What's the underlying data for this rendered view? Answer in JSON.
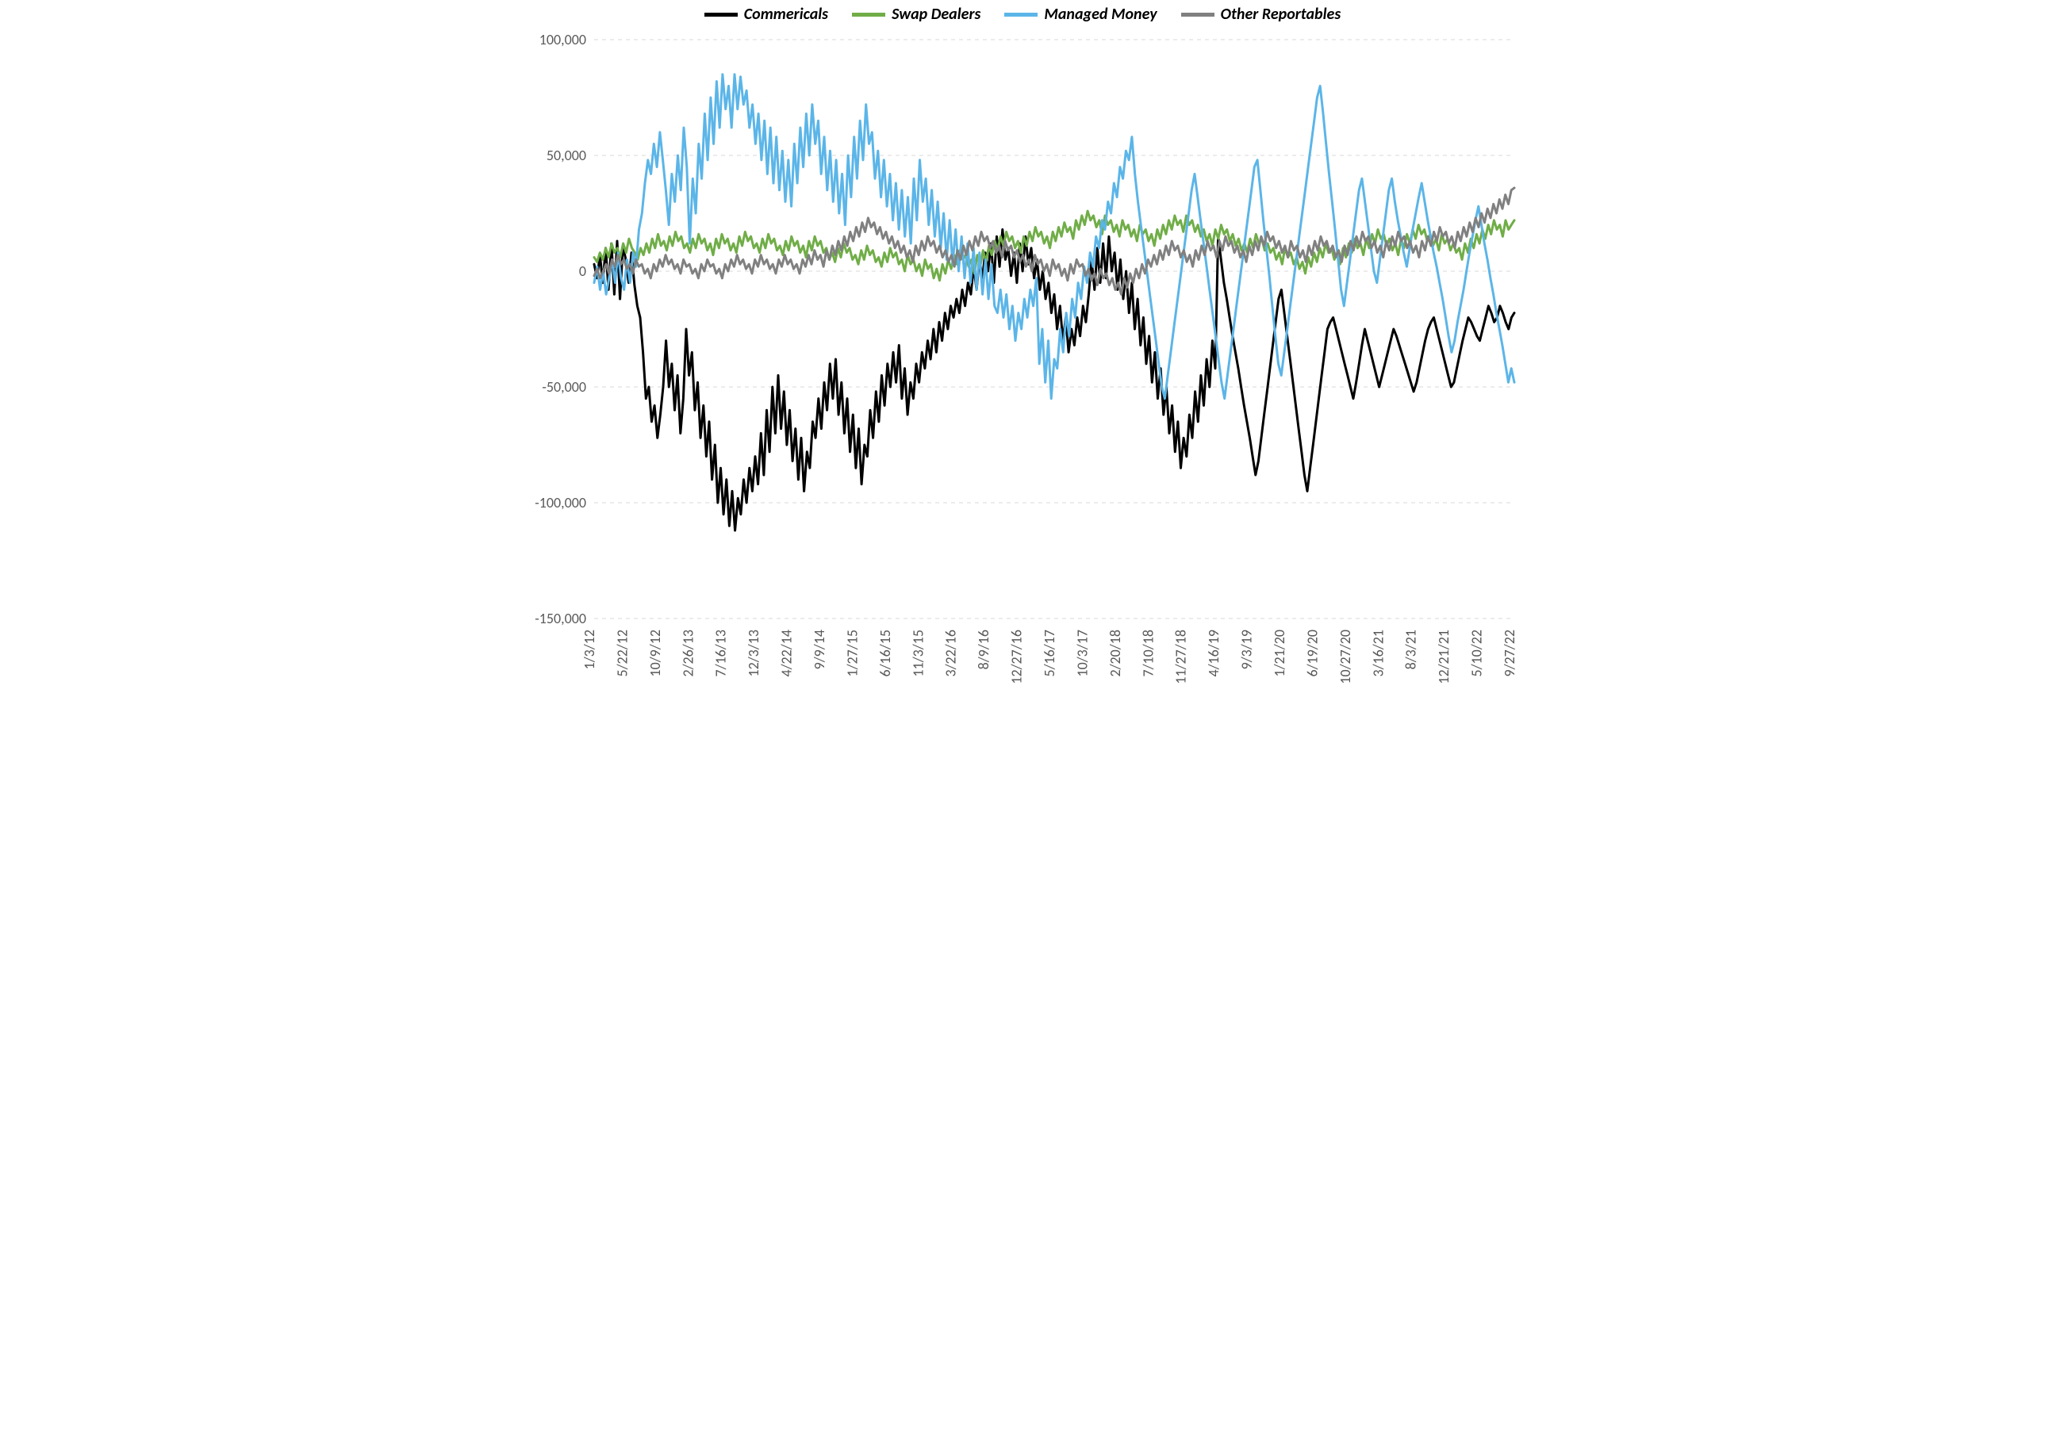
{
  "chart": {
    "type": "line",
    "background_color": "#ffffff",
    "grid_color": "#d9d9d9",
    "grid_dash": "5,5",
    "axis_label_color": "#595959",
    "y": {
      "min": -150000,
      "max": 100000,
      "tick_step": 50000,
      "tick_labels": [
        "-150,000",
        "-100,000",
        "-50,000",
        "0",
        "50,000",
        "100,000"
      ]
    },
    "x": {
      "labels": [
        "1/3/12",
        "5/22/12",
        "10/9/12",
        "2/26/13",
        "7/16/13",
        "12/3/13",
        "4/22/14",
        "9/9/14",
        "1/27/15",
        "6/16/15",
        "11/3/15",
        "3/22/16",
        "8/9/16",
        "12/27/16",
        "5/16/17",
        "10/3/17",
        "2/20/18",
        "7/10/18",
        "11/27/18",
        "4/16/19",
        "9/3/19",
        "1/21/20",
        "6/19/20",
        "10/27/20",
        "3/16/21",
        "8/3/21",
        "12/21/21",
        "5/10/22",
        "9/27/22"
      ]
    },
    "legend": {
      "fontsize": 20,
      "font_style": "italic",
      "font_weight": "bold",
      "items": [
        {
          "label": "Commericals",
          "color": "#000000"
        },
        {
          "label": "Swap Dealers",
          "color": "#70ad47"
        },
        {
          "label": "Managed Money",
          "color": "#5bb5e8"
        },
        {
          "label": "Other Reportables",
          "color": "#808080"
        }
      ]
    },
    "line_width": 3,
    "series": [
      {
        "name": "Commericals",
        "color": "#000000",
        "values": [
          3,
          -3,
          7,
          -5,
          10,
          -8,
          12,
          -10,
          13,
          -12,
          11,
          5,
          -5,
          8,
          -6,
          -15,
          -20,
          -35,
          -55,
          -50,
          -65,
          -58,
          -72,
          -62,
          -50,
          -30,
          -50,
          -40,
          -60,
          -45,
          -70,
          -55,
          -25,
          -45,
          -35,
          -60,
          -48,
          -72,
          -58,
          -80,
          -65,
          -90,
          -75,
          -100,
          -85,
          -105,
          -90,
          -110,
          -95,
          -112,
          -98,
          -105,
          -90,
          -100,
          -85,
          -95,
          -80,
          -92,
          -70,
          -88,
          -60,
          -78,
          -50,
          -70,
          -45,
          -68,
          -52,
          -75,
          -60,
          -82,
          -68,
          -90,
          -72,
          -95,
          -78,
          -85,
          -65,
          -72,
          -55,
          -68,
          -48,
          -60,
          -40,
          -55,
          -38,
          -62,
          -48,
          -70,
          -55,
          -78,
          -62,
          -85,
          -68,
          -92,
          -75,
          -80,
          -60,
          -72,
          -52,
          -65,
          -45,
          -58,
          -40,
          -50,
          -35,
          -48,
          -32,
          -55,
          -42,
          -62,
          -48,
          -55,
          -40,
          -48,
          -35,
          -42,
          -30,
          -38,
          -25,
          -35,
          -22,
          -30,
          -18,
          -25,
          -15,
          -20,
          -12,
          -18,
          -8,
          -15,
          -5,
          -10,
          2,
          -8,
          5,
          -3,
          8,
          0,
          12,
          -5,
          15,
          2,
          18,
          5,
          10,
          -2,
          8,
          -5,
          12,
          0,
          15,
          3,
          10,
          -3,
          5,
          -8,
          0,
          -12,
          -5,
          -18,
          -10,
          -25,
          -15,
          -30,
          -20,
          -35,
          -25,
          -32,
          -20,
          -28,
          -15,
          -22,
          -10,
          5,
          -8,
          10,
          -5,
          12,
          -3,
          15,
          0,
          8,
          -8,
          5,
          -12,
          0,
          -18,
          -5,
          -25,
          -12,
          -32,
          -20,
          -40,
          -28,
          -48,
          -35,
          -55,
          -42,
          -62,
          -50,
          -70,
          -58,
          -78,
          -65,
          -85,
          -72,
          -80,
          -62,
          -72,
          -52,
          -65,
          -45,
          -58,
          -38,
          -50,
          -30,
          -42,
          15,
          5,
          -5,
          -12,
          -20,
          -28,
          -35,
          -42,
          -50,
          -58,
          -65,
          -72,
          -80,
          -88,
          -82,
          -72,
          -62,
          -52,
          -42,
          -32,
          -22,
          -12,
          -8,
          -18,
          -28,
          -38,
          -48,
          -58,
          -68,
          -78,
          -88,
          -95,
          -85,
          -75,
          -65,
          -55,
          -45,
          -35,
          -25,
          -22,
          -20,
          -25,
          -30,
          -35,
          -40,
          -45,
          -50,
          -55,
          -48,
          -40,
          -32,
          -25,
          -30,
          -35,
          -40,
          -45,
          -50,
          -45,
          -40,
          -35,
          -30,
          -25,
          -28,
          -32,
          -36,
          -40,
          -44,
          -48,
          -52,
          -48,
          -42,
          -36,
          -30,
          -25,
          -22,
          -20,
          -25,
          -30,
          -35,
          -40,
          -45,
          -50,
          -48,
          -42,
          -36,
          -30,
          -25,
          -20,
          -22,
          -25,
          -28,
          -30,
          -25,
          -20,
          -15,
          -18,
          -22,
          -20,
          -15,
          -18,
          -22,
          -25,
          -20,
          -18
        ]
      },
      {
        "name": "Swap Dealers",
        "color": "#70ad47",
        "values": [
          6,
          4,
          8,
          5,
          10,
          6,
          12,
          8,
          10,
          6,
          12,
          8,
          14,
          10,
          8,
          5,
          10,
          7,
          12,
          8,
          14,
          10,
          16,
          11,
          13,
          9,
          15,
          11,
          17,
          13,
          15,
          10,
          12,
          8,
          14,
          10,
          16,
          12,
          14,
          9,
          12,
          7,
          14,
          10,
          16,
          12,
          14,
          9,
          12,
          8,
          15,
          11,
          17,
          13,
          15,
          10,
          12,
          8,
          14,
          10,
          16,
          12,
          14,
          9,
          11,
          7,
          13,
          9,
          15,
          11,
          13,
          8,
          11,
          6,
          13,
          9,
          15,
          11,
          13,
          8,
          10,
          5,
          8,
          4,
          10,
          6,
          12,
          8,
          10,
          5,
          7,
          3,
          9,
          5,
          11,
          7,
          9,
          4,
          6,
          2,
          8,
          4,
          10,
          6,
          8,
          3,
          5,
          0,
          7,
          3,
          5,
          0,
          3,
          -2,
          5,
          1,
          3,
          -3,
          1,
          -4,
          3,
          -1,
          5,
          1,
          7,
          3,
          9,
          5,
          7,
          2,
          5,
          -1,
          7,
          2,
          9,
          4,
          11,
          7,
          13,
          9,
          15,
          11,
          17,
          13,
          15,
          10,
          13,
          8,
          15,
          11,
          17,
          13,
          19,
          15,
          17,
          12,
          15,
          10,
          17,
          13,
          19,
          15,
          21,
          17,
          19,
          14,
          22,
          18,
          24,
          20,
          26,
          22,
          24,
          19,
          22,
          16,
          24,
          20,
          22,
          17,
          20,
          15,
          22,
          18,
          20,
          15,
          18,
          13,
          20,
          16,
          18,
          13,
          16,
          11,
          18,
          14,
          20,
          16,
          22,
          18,
          24,
          20,
          22,
          17,
          24,
          20,
          22,
          17,
          20,
          15,
          18,
          13,
          16,
          11,
          18,
          14,
          20,
          16,
          18,
          13,
          16,
          11,
          14,
          9,
          12,
          8,
          14,
          10,
          16,
          12,
          14,
          9,
          12,
          8,
          10,
          5,
          8,
          3,
          10,
          6,
          8,
          3,
          6,
          1,
          4,
          -1,
          6,
          2,
          8,
          4,
          10,
          6,
          12,
          8,
          10,
          5,
          8,
          3,
          10,
          6,
          12,
          8,
          14,
          10,
          12,
          7,
          14,
          10,
          16,
          12,
          18,
          14,
          16,
          11,
          14,
          9,
          12,
          7,
          14,
          10,
          16,
          12,
          18,
          14,
          20,
          16,
          18,
          13,
          16,
          11,
          14,
          9,
          16,
          12,
          14,
          9,
          12,
          8,
          10,
          5,
          12,
          8,
          14,
          10,
          16,
          12,
          18,
          14,
          20,
          16,
          22,
          18,
          20,
          15,
          22,
          18,
          20,
          22
        ]
      },
      {
        "name": "Managed Money",
        "color": "#5bb5e8",
        "values": [
          -5,
          2,
          -8,
          0,
          -10,
          -3,
          5,
          -5,
          8,
          -3,
          -8,
          5,
          -5,
          8,
          2,
          18,
          25,
          38,
          48,
          42,
          55,
          45,
          60,
          48,
          35,
          20,
          42,
          30,
          50,
          35,
          62,
          45,
          12,
          40,
          25,
          55,
          40,
          68,
          48,
          75,
          55,
          82,
          62,
          85,
          70,
          80,
          62,
          85,
          70,
          84,
          72,
          78,
          62,
          72,
          55,
          68,
          48,
          65,
          42,
          62,
          38,
          58,
          35,
          52,
          30,
          48,
          28,
          55,
          38,
          62,
          45,
          68,
          50,
          72,
          55,
          65,
          42,
          58,
          35,
          52,
          30,
          48,
          25,
          42,
          20,
          50,
          32,
          58,
          40,
          65,
          48,
          72,
          55,
          60,
          40,
          52,
          32,
          48,
          28,
          42,
          22,
          38,
          18,
          35,
          15,
          32,
          12,
          40,
          22,
          48,
          30,
          40,
          20,
          35,
          15,
          30,
          10,
          25,
          5,
          22,
          3,
          18,
          0,
          15,
          -3,
          12,
          -5,
          10,
          -8,
          8,
          -10,
          5,
          -12,
          3,
          -15,
          -18,
          -8,
          -20,
          -10,
          -25,
          -15,
          -30,
          -18,
          -25,
          -12,
          -20,
          -8,
          -15,
          -3,
          -40,
          -25,
          -48,
          -30,
          -55,
          -38,
          -42,
          -25,
          -35,
          -18,
          -28,
          -12,
          -20,
          -5,
          -12,
          2,
          -5,
          8,
          2,
          15,
          10,
          22,
          18,
          30,
          25,
          38,
          32,
          45,
          40,
          52,
          48,
          58,
          42,
          30,
          20,
          10,
          0,
          -10,
          -20,
          -30,
          -40,
          -50,
          -55,
          -45,
          -35,
          -25,
          -15,
          -5,
          5,
          15,
          25,
          35,
          42,
          32,
          22,
          12,
          2,
          -8,
          -18,
          -28,
          -38,
          -48,
          -55,
          -45,
          -35,
          -25,
          -15,
          -5,
          5,
          15,
          25,
          35,
          45,
          48,
          35,
          22,
          10,
          -2,
          -15,
          -28,
          -40,
          -45,
          -35,
          -25,
          -15,
          -5,
          5,
          15,
          25,
          35,
          45,
          55,
          65,
          75,
          80,
          68,
          55,
          42,
          30,
          18,
          5,
          -8,
          -15,
          -5,
          5,
          15,
          25,
          35,
          40,
          30,
          20,
          10,
          0,
          -5,
          5,
          15,
          25,
          35,
          40,
          30,
          22,
          15,
          8,
          2,
          10,
          18,
          25,
          32,
          38,
          30,
          22,
          15,
          8,
          2,
          -5,
          -12,
          -20,
          -28,
          -35,
          -30,
          -22,
          -15,
          -8,
          0,
          8,
          15,
          22,
          28,
          20,
          12,
          5,
          -3,
          -10,
          -18,
          -25,
          -32,
          -40,
          -48,
          -42,
          -48
        ]
      },
      {
        "name": "Other Reportables",
        "color": "#808080",
        "values": [
          -2,
          1,
          -3,
          0,
          3,
          -1,
          5,
          2,
          7,
          3,
          5,
          1,
          3,
          -1,
          5,
          2,
          3,
          -1,
          1,
          -3,
          3,
          0,
          5,
          2,
          7,
          3,
          5,
          1,
          3,
          -1,
          5,
          2,
          3,
          -1,
          1,
          -3,
          3,
          0,
          5,
          2,
          3,
          -1,
          1,
          -3,
          3,
          0,
          5,
          2,
          7,
          3,
          5,
          1,
          3,
          -1,
          5,
          2,
          7,
          3,
          5,
          1,
          3,
          -1,
          5,
          2,
          7,
          3,
          5,
          1,
          3,
          -1,
          5,
          2,
          7,
          3,
          9,
          5,
          7,
          2,
          9,
          5,
          11,
          7,
          13,
          9,
          15,
          11,
          17,
          13,
          19,
          15,
          21,
          17,
          23,
          19,
          21,
          16,
          19,
          14,
          17,
          12,
          15,
          10,
          13,
          8,
          11,
          6,
          9,
          4,
          11,
          7,
          13,
          9,
          15,
          11,
          13,
          8,
          11,
          6,
          9,
          4,
          7,
          2,
          9,
          5,
          11,
          7,
          13,
          9,
          15,
          11,
          17,
          13,
          15,
          10,
          13,
          8,
          11,
          6,
          13,
          9,
          11,
          6,
          9,
          4,
          7,
          2,
          5,
          0,
          7,
          3,
          5,
          0,
          3,
          -2,
          5,
          1,
          3,
          -2,
          1,
          -4,
          3,
          -1,
          5,
          2,
          3,
          -2,
          1,
          -4,
          -1,
          -6,
          1,
          -3,
          -1,
          -6,
          -3,
          -8,
          -5,
          -10,
          -3,
          -7,
          -1,
          -5,
          1,
          -3,
          3,
          -1,
          5,
          2,
          7,
          3,
          9,
          5,
          11,
          7,
          13,
          9,
          11,
          6,
          9,
          4,
          7,
          2,
          9,
          5,
          11,
          7,
          13,
          9,
          11,
          6,
          13,
          9,
          15,
          11,
          13,
          8,
          11,
          6,
          9,
          4,
          11,
          7,
          13,
          9,
          15,
          11,
          17,
          13,
          15,
          10,
          13,
          8,
          11,
          6,
          13,
          9,
          11,
          6,
          9,
          4,
          11,
          7,
          13,
          9,
          15,
          11,
          13,
          8,
          11,
          6,
          9,
          4,
          11,
          7,
          13,
          9,
          15,
          11,
          17,
          13,
          15,
          10,
          13,
          8,
          11,
          6,
          13,
          9,
          15,
          11,
          17,
          13,
          15,
          10,
          13,
          8,
          11,
          6,
          13,
          9,
          15,
          11,
          17,
          13,
          19,
          15,
          17,
          12,
          15,
          10,
          17,
          13,
          19,
          15,
          21,
          17,
          23,
          19,
          25,
          21,
          27,
          23,
          29,
          25,
          31,
          27,
          33,
          29,
          35,
          36
        ]
      }
    ]
  }
}
